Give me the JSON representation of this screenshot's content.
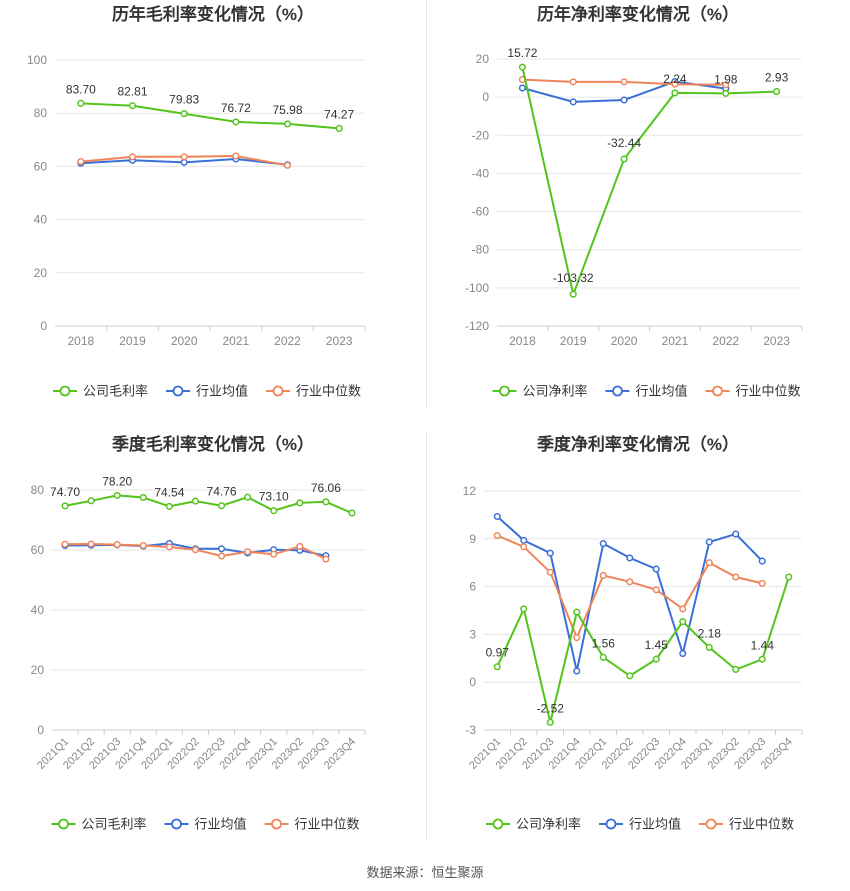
{
  "colors": {
    "company": "#52c41a",
    "industry_avg": "#3a6fd8",
    "industry_median": "#f0845a",
    "grid": "#e6e6e6",
    "axis_text": "#888888",
    "title": "#333333"
  },
  "source": "数据来源：恒生聚源",
  "chart_data": [
    {
      "type": "line",
      "title": "历年毛利率变化情况（%）",
      "categories": [
        "2018",
        "2019",
        "2020",
        "2021",
        "2022",
        "2023"
      ],
      "ylim": [
        0,
        100
      ],
      "yticks": [
        0,
        20,
        40,
        60,
        80,
        100
      ],
      "grid": true,
      "legend": "bottom",
      "series": [
        {
          "name": "公司毛利率",
          "role": "company",
          "values": [
            83.7,
            82.81,
            79.83,
            76.72,
            75.98,
            74.27
          ],
          "labels": [
            "83.70",
            "82.81",
            "79.83",
            "76.72",
            "75.98",
            "74.27"
          ]
        },
        {
          "name": "行业均值",
          "role": "industry_avg",
          "values": [
            61.2,
            62.3,
            61.5,
            62.8,
            60.6,
            null
          ]
        },
        {
          "name": "行业中位数",
          "role": "industry_median",
          "values": [
            61.8,
            63.6,
            63.6,
            63.9,
            60.4,
            null
          ]
        }
      ]
    },
    {
      "type": "line",
      "title": "历年净利率变化情况（%）",
      "categories": [
        "2018",
        "2019",
        "2020",
        "2021",
        "2022",
        "2023"
      ],
      "ylim": [
        -120,
        20
      ],
      "yticks": [
        -120,
        -100,
        -80,
        -60,
        -40,
        -20,
        0,
        20
      ],
      "grid": true,
      "legend": "bottom",
      "series": [
        {
          "name": "公司净利率",
          "role": "company",
          "values": [
            15.72,
            -103.32,
            -32.44,
            2.24,
            1.98,
            2.93
          ],
          "labels": [
            "15.72",
            "-103.32",
            "-32.44",
            "2.24",
            "1.98",
            "2.93"
          ]
        },
        {
          "name": "行业均值",
          "role": "industry_avg",
          "values": [
            4.8,
            -2.5,
            -1.5,
            8.2,
            4.5,
            null
          ]
        },
        {
          "name": "行业中位数",
          "role": "industry_median",
          "values": [
            9.2,
            8.0,
            8.0,
            6.8,
            6.5,
            null
          ]
        }
      ]
    },
    {
      "type": "line",
      "title": "季度毛利率变化情况（%）",
      "categories": [
        "2021Q1",
        "2021Q2",
        "2021Q3",
        "2021Q4",
        "2022Q1",
        "2022Q2",
        "2022Q3",
        "2022Q4",
        "2023Q1",
        "2023Q2",
        "2023Q3",
        "2023Q4"
      ],
      "ylim": [
        0,
        80
      ],
      "yticks": [
        0,
        20,
        40,
        60,
        80
      ],
      "grid": true,
      "legend": "bottom",
      "series": [
        {
          "name": "公司毛利率",
          "role": "company",
          "values": [
            74.7,
            76.4,
            78.2,
            77.5,
            74.54,
            76.3,
            74.76,
            77.6,
            73.1,
            75.7,
            76.06,
            72.3
          ],
          "labels": [
            "74.70",
            "",
            "78.20",
            "",
            "74.54",
            "",
            "74.76",
            "",
            "73.10",
            "",
            "76.06",
            ""
          ]
        },
        {
          "name": "行业均值",
          "role": "industry_avg",
          "values": [
            61.5,
            61.6,
            61.7,
            61.3,
            62.2,
            60.4,
            60.4,
            59.0,
            60.1,
            59.9,
            58.1,
            null
          ]
        },
        {
          "name": "行业中位数",
          "role": "industry_median",
          "values": [
            61.9,
            62.0,
            61.8,
            61.5,
            61.0,
            60.1,
            58.0,
            59.4,
            58.6,
            61.2,
            57.0,
            null
          ]
        }
      ]
    },
    {
      "type": "line",
      "title": "季度净利率变化情况（%）",
      "categories": [
        "2021Q1",
        "2021Q2",
        "2021Q3",
        "2021Q4",
        "2022Q1",
        "2022Q2",
        "2022Q3",
        "2022Q4",
        "2023Q1",
        "2023Q2",
        "2023Q3",
        "2023Q4"
      ],
      "ylim": [
        -3,
        12
      ],
      "yticks": [
        -3,
        0,
        3,
        6,
        9,
        12
      ],
      "grid": true,
      "legend": "bottom",
      "series": [
        {
          "name": "公司净利率",
          "role": "company",
          "values": [
            0.97,
            4.6,
            -2.52,
            4.4,
            1.56,
            0.4,
            1.45,
            3.8,
            2.18,
            0.8,
            1.44,
            6.6
          ],
          "labels": [
            "0.97",
            "",
            "-2.52",
            "",
            "1.56",
            "",
            "1.45",
            "",
            "2.18",
            "",
            "1.44",
            ""
          ]
        },
        {
          "name": "行业均值",
          "role": "industry_avg",
          "values": [
            10.4,
            8.9,
            8.1,
            0.7,
            8.7,
            7.8,
            7.1,
            1.8,
            8.8,
            9.3,
            7.6,
            null
          ]
        },
        {
          "name": "行业中位数",
          "role": "industry_median",
          "values": [
            9.2,
            8.5,
            6.9,
            2.8,
            6.7,
            6.3,
            5.8,
            4.6,
            7.5,
            6.6,
            6.2,
            null
          ]
        }
      ]
    }
  ]
}
